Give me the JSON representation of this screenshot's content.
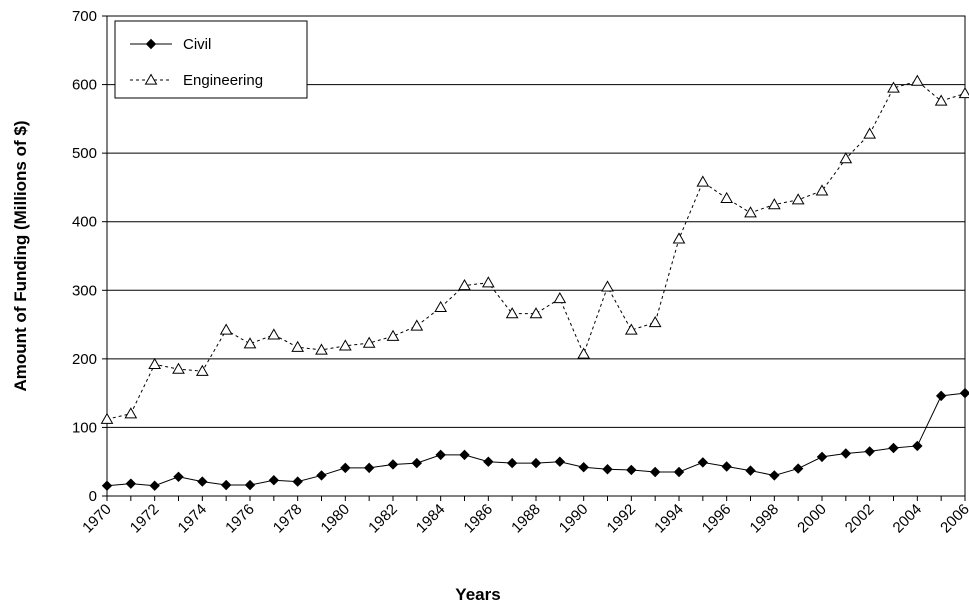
{
  "chart_data": {
    "type": "line",
    "title": "",
    "xlabel": "Years",
    "ylabel": "Amount of Funding (Millions of $)",
    "xlim": [
      1970,
      2006
    ],
    "ylim": [
      0,
      700
    ],
    "y_ticks": [
      "0",
      "100",
      "200",
      "300",
      "400",
      "500",
      "600",
      "700"
    ],
    "x_ticks": [
      "1970",
      "1972",
      "1974",
      "1976",
      "1978",
      "1980",
      "1982",
      "1984",
      "1986",
      "1988",
      "1990",
      "1992",
      "1994",
      "1996",
      "1998",
      "2000",
      "2002",
      "2004",
      "2006"
    ],
    "grid": "horizontal",
    "legend_position": "top-left",
    "x": [
      1970,
      1971,
      1972,
      1973,
      1974,
      1975,
      1976,
      1977,
      1978,
      1979,
      1980,
      1981,
      1982,
      1983,
      1984,
      1985,
      1986,
      1987,
      1988,
      1989,
      1990,
      1991,
      1992,
      1993,
      1994,
      1995,
      1996,
      1997,
      1998,
      1999,
      2000,
      2001,
      2002,
      2003,
      2004,
      2005,
      2006
    ],
    "series": [
      {
        "name": "Civil",
        "marker": "diamond",
        "line": "solid",
        "color": "#000000",
        "values": [
          15,
          18,
          15,
          28,
          21,
          16,
          16,
          23,
          21,
          30,
          41,
          41,
          46,
          48,
          60,
          60,
          50,
          48,
          48,
          50,
          42,
          39,
          38,
          35,
          35,
          49,
          43,
          37,
          30,
          40,
          57,
          62,
          65,
          70,
          73,
          146,
          150
        ]
      },
      {
        "name": "Engineering",
        "marker": "triangle",
        "line": "dashed",
        "color": "#000000",
        "values": [
          112,
          120,
          192,
          185,
          182,
          242,
          222,
          235,
          217,
          213,
          219,
          223,
          233,
          248,
          275,
          307,
          311,
          266,
          266,
          288,
          207,
          305,
          242,
          253,
          375,
          458,
          434,
          413,
          425,
          432,
          445,
          492,
          528,
          595,
          605,
          576,
          587
        ]
      }
    ]
  }
}
